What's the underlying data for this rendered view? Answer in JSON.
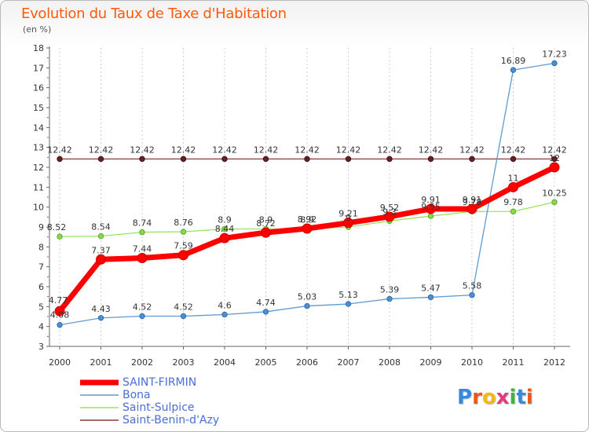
{
  "title": "Evolution du Taux de Taxe d'Habitation",
  "subtitle": "(en %)",
  "logo": "Proxiti",
  "chart_data": {
    "type": "line",
    "x": [
      2000,
      2001,
      2002,
      2003,
      2004,
      2005,
      2006,
      2007,
      2008,
      2009,
      2010,
      2011,
      2012
    ],
    "ylim": [
      3,
      18
    ],
    "yticks": [
      3,
      4,
      5,
      6,
      7,
      8,
      9,
      10,
      11,
      12,
      13,
      14,
      15,
      16,
      17,
      18
    ],
    "grid": "vertical dashed",
    "legend_position": "bottom-left",
    "series": [
      {
        "name": "SAINT-FIRMIN",
        "color": "#ff0000",
        "values": [
          4.77,
          7.37,
          7.44,
          7.59,
          8.44,
          8.72,
          8.92,
          9.21,
          9.52,
          9.91,
          9.91,
          11,
          12
        ],
        "labels": [
          "4.77",
          "7.37",
          "7.44",
          "7.59",
          "8.44",
          "8.72",
          "8.92",
          "9.21",
          "9.52",
          "9.91",
          "9.91",
          "11",
          "12"
        ]
      },
      {
        "name": "Bona",
        "color": "#5e9bd1",
        "values": [
          4.08,
          4.43,
          4.52,
          4.52,
          4.6,
          4.74,
          5.03,
          5.13,
          5.39,
          5.47,
          5.58,
          16.89,
          17.23
        ],
        "labels": [
          "4.08",
          "4.43",
          "4.52",
          "4.52",
          "4.6",
          "4.74",
          "5.03",
          "5.13",
          "5.39",
          "5.47",
          "5.58",
          "16.89",
          "17.23"
        ]
      },
      {
        "name": "Saint-Sulpice",
        "color": "#9be55b",
        "values": [
          8.52,
          8.54,
          8.74,
          8.76,
          8.9,
          8.9,
          8.9,
          9.0,
          9.3,
          9.55,
          9.78,
          9.78,
          10.25
        ],
        "labels": [
          "8.52",
          "8.54",
          "8.74",
          "8.76",
          "8.9",
          "8.9",
          "8.9",
          "9",
          "9.3",
          "9.55",
          "9.78",
          "9.78",
          "10.25"
        ]
      },
      {
        "name": "Saint-Benin-d'Azy",
        "color": "#8b3a3a",
        "values": [
          12.42,
          12.42,
          12.42,
          12.42,
          12.42,
          12.42,
          12.42,
          12.42,
          12.42,
          12.42,
          12.42,
          12.42,
          12.42
        ],
        "labels": [
          "12.42",
          "12.42",
          "12.42",
          "12.42",
          "12.42",
          "12.42",
          "12.42",
          "12.42",
          "12.42",
          "12.42",
          "12.42",
          "12.42",
          "12.42"
        ]
      }
    ]
  }
}
